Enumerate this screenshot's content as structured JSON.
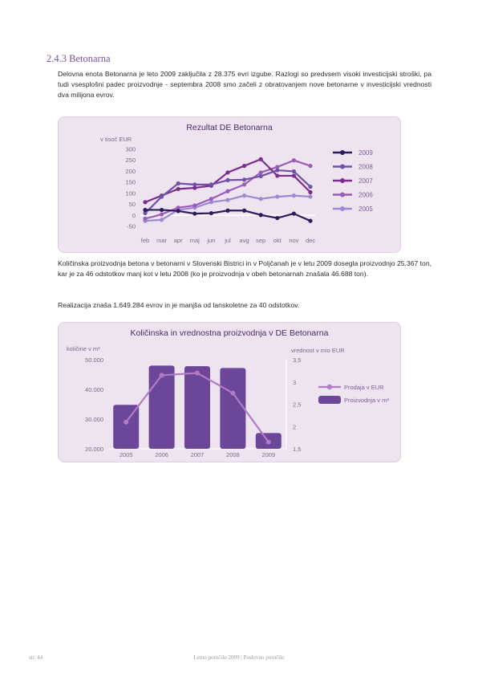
{
  "section": {
    "heading": "2.4.3 Betonarna"
  },
  "paragraphs": {
    "p1": "Delovna enota Betonarna je leto 2009 zaključila z 28.375 evri izgube. Razlogi so predvsem visoki investicijski stroški, pa tudi vsesplošni padec proizvodnje - septembra 2008 smo začeli z obratovanjem nove betonarne v investicijski vrednosti dva milijona evrov.",
    "p2": "Količinska proizvodnja betona v betonarni v Slovenski Bistrici in v Poljčanah je v letu 2009 dosegla proizvodnjo 25.367 ton, kar je za 46 odstotkov manj kot v letu 2008 (ko je proizvodnja v obeh betonarnah znašala 46.688 ton).",
    "p3": "Realizacija znaša 1.649.284 evrov in je manjša od lanskoletne za 40 odstotkov."
  },
  "footer": {
    "page": "str. 44",
    "report": "Letno poročilo 2009 | Poslovno poročilo"
  },
  "chart_data": [
    {
      "type": "line",
      "title": "Rezultat DE Betonarna",
      "ylabel": "v tisoč EUR",
      "xlabel": "",
      "ylim": [
        -50,
        300
      ],
      "yticks": [
        -50,
        0,
        50,
        100,
        150,
        200,
        250,
        300
      ],
      "categories": [
        "feb",
        "mar",
        "apr",
        "maj",
        "jun",
        "jul",
        "avg",
        "sep",
        "okt",
        "nov",
        "dec"
      ],
      "legend_position": "right",
      "series": [
        {
          "name": "2009",
          "color": "#2d1a5c",
          "values": [
            25,
            25,
            20,
            8,
            10,
            22,
            22,
            2,
            -12,
            8,
            -25
          ]
        },
        {
          "name": "2008",
          "color": "#6e52a8",
          "values": [
            10,
            85,
            145,
            140,
            140,
            160,
            162,
            178,
            205,
            200,
            130
          ]
        },
        {
          "name": "2007",
          "color": "#7a2d8e",
          "values": [
            60,
            90,
            120,
            125,
            135,
            195,
            225,
            255,
            180,
            180,
            105
          ]
        },
        {
          "name": "2006",
          "color": "#9a5cb8",
          "values": [
            -15,
            5,
            35,
            45,
            75,
            110,
            140,
            195,
            220,
            250,
            225
          ]
        },
        {
          "name": "2005",
          "color": "#9b8ad0",
          "values": [
            -25,
            -20,
            25,
            35,
            60,
            70,
            90,
            75,
            85,
            90,
            85
          ]
        }
      ]
    },
    {
      "type": "bar",
      "title": "Količinska in vrednostna proizvodnja v DE Betonarna",
      "ylabel": "količine v m³",
      "ylabel2": "vrednost v mio EUR",
      "categories": [
        "2005",
        "2006",
        "2007",
        "2008",
        "2009"
      ],
      "ylim": [
        20000,
        50000
      ],
      "yticks": [
        "20.000",
        "30.000",
        "40.000",
        "50.000"
      ],
      "y2lim": [
        1.5,
        3.5
      ],
      "y2ticks": [
        "1,5",
        "2",
        "2,5",
        "3",
        "3,5"
      ],
      "legend_position": "right",
      "series": [
        {
          "name": "Prodaja v EUR",
          "type": "line",
          "axis": "right",
          "color": "#b07cc6",
          "values": [
            2.1,
            3.15,
            3.2,
            2.75,
            1.65
          ]
        },
        {
          "name": "Proizvodnja v m³",
          "type": "bar",
          "axis": "left",
          "color": "#6b4699",
          "values": [
            34800,
            48000,
            47800,
            47200,
            25300
          ]
        }
      ]
    }
  ]
}
